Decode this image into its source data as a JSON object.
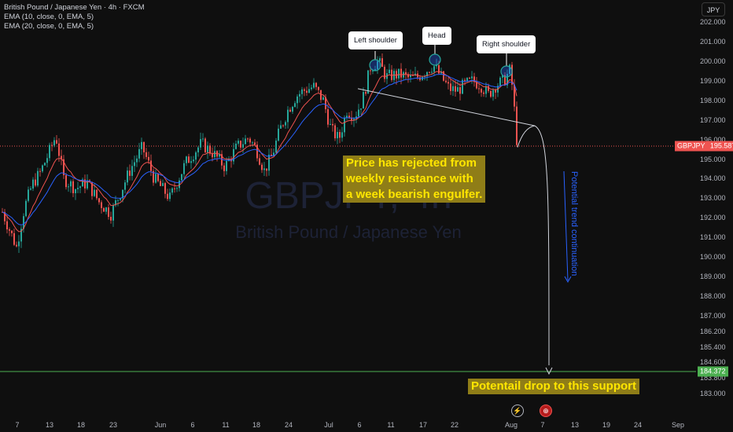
{
  "legend": {
    "symbol_line": "British Pound / Japanese Yen · 4h · FXCM",
    "ema1": "EMA (10, close, 0, EMA, 5)",
    "ema2": "EMA (20, close, 0, EMA, 5)"
  },
  "currency_button": "JPY",
  "watermark": {
    "ticker": "GBPJPY, 4h",
    "name": "British Pound / Japanese Yen"
  },
  "annotations": {
    "left_shoulder": "Left shoulder",
    "head": "Head",
    "right_shoulder": "Right shoulder",
    "rejection_note": [
      "Price has rejected from",
      "weekly resistance with",
      "a week bearish engulfer."
    ],
    "trend_note": "Potential trend continuation",
    "support_note": "Potentail drop to this support"
  },
  "price_tags": {
    "current_symbol": "GBPJPY",
    "current_price": "195.587",
    "support_price": "184.372"
  },
  "colors": {
    "background": "#0f0f0f",
    "bull": "#26a69a",
    "bear": "#ef5350",
    "ema_fast": "#ef5350",
    "ema_slow": "#2962ff",
    "support": "#4caf50",
    "annotation_yellow": "#ffe600",
    "annotation_blue": "#2962ff"
  },
  "icons": {
    "lightning": "lightning-icon",
    "flag": "flag-icon"
  },
  "chart_data": {
    "type": "candlestick",
    "symbol": "GBPJPY",
    "timeframe": "4h",
    "ylim": [
      183.1,
      202.8
    ],
    "y_ticks": [
      "202.000",
      "201.000",
      "200.000",
      "199.000",
      "198.000",
      "197.000",
      "196.000",
      "195.000",
      "194.000",
      "193.000",
      "192.000",
      "191.000",
      "190.000",
      "189.000",
      "188.000",
      "187.000",
      "186.200",
      "185.400",
      "184.600",
      "183.800",
      "183.000"
    ],
    "x_ticks": [
      "7",
      "13",
      "18",
      "23",
      "Jun",
      "6",
      "11",
      "18",
      "24",
      "Jul",
      "6",
      "11",
      "17",
      "22",
      "Aug",
      "7",
      "13",
      "19",
      "24",
      "Sep"
    ],
    "series": [
      {
        "name": "EMA (10, close, 0, EMA, 5)"
      },
      {
        "name": "EMA (20, close, 0, EMA, 5)"
      }
    ],
    "price_path": [
      [
        0,
        192.5
      ],
      [
        10,
        191.5
      ],
      [
        20,
        190.5
      ],
      [
        30,
        192.5
      ],
      [
        40,
        193.7
      ],
      [
        50,
        194.3
      ],
      [
        60,
        195.2
      ],
      [
        70,
        196.2
      ],
      [
        80,
        194.0
      ],
      [
        95,
        193.5
      ],
      [
        110,
        193.8
      ],
      [
        125,
        192.8
      ],
      [
        140,
        192.2
      ],
      [
        150,
        193.1
      ],
      [
        165,
        194.5
      ],
      [
        180,
        195.6
      ],
      [
        195,
        194.0
      ],
      [
        205,
        193.5
      ],
      [
        215,
        193.0
      ],
      [
        225,
        193.9
      ],
      [
        235,
        194.8
      ],
      [
        245,
        195.3
      ],
      [
        255,
        195.8
      ],
      [
        270,
        195.3
      ],
      [
        285,
        194.6
      ],
      [
        300,
        195.6
      ],
      [
        315,
        196.1
      ],
      [
        325,
        195.5
      ],
      [
        335,
        194.4
      ],
      [
        345,
        195.2
      ],
      [
        355,
        196.5
      ],
      [
        365,
        197.5
      ],
      [
        375,
        198.2
      ],
      [
        385,
        198.5
      ],
      [
        398,
        198.7
      ],
      [
        410,
        198.0
      ],
      [
        420,
        196.5
      ],
      [
        430,
        196.0
      ],
      [
        440,
        197.5
      ],
      [
        450,
        197.2
      ],
      [
        460,
        198.0
      ],
      [
        470,
        199.7
      ],
      [
        480,
        200.0
      ],
      [
        490,
        199.2
      ],
      [
        500,
        199.3
      ],
      [
        510,
        199.3
      ],
      [
        520,
        199.1
      ],
      [
        530,
        199.2
      ],
      [
        540,
        199.5
      ],
      [
        550,
        199.8
      ],
      [
        560,
        199.2
      ],
      [
        570,
        198.6
      ],
      [
        580,
        198.5
      ],
      [
        590,
        198.8
      ],
      [
        600,
        199.0
      ],
      [
        610,
        198.8
      ],
      [
        620,
        198.3
      ],
      [
        630,
        198.8
      ],
      [
        640,
        199.0
      ],
      [
        648,
        199.6
      ],
      [
        652,
        198.0
      ],
      [
        656,
        196.0
      ],
      [
        658,
        195.6
      ]
    ],
    "neckline": {
      "from": [
        455,
        198.6
      ],
      "to": [
        680,
        196.7
      ]
    },
    "projection": {
      "from": [
        658,
        195.6
      ],
      "peak": [
        680,
        196.7
      ],
      "to": [
        698,
        184.372
      ]
    },
    "support_level": 184.372,
    "current_price": 195.587
  }
}
